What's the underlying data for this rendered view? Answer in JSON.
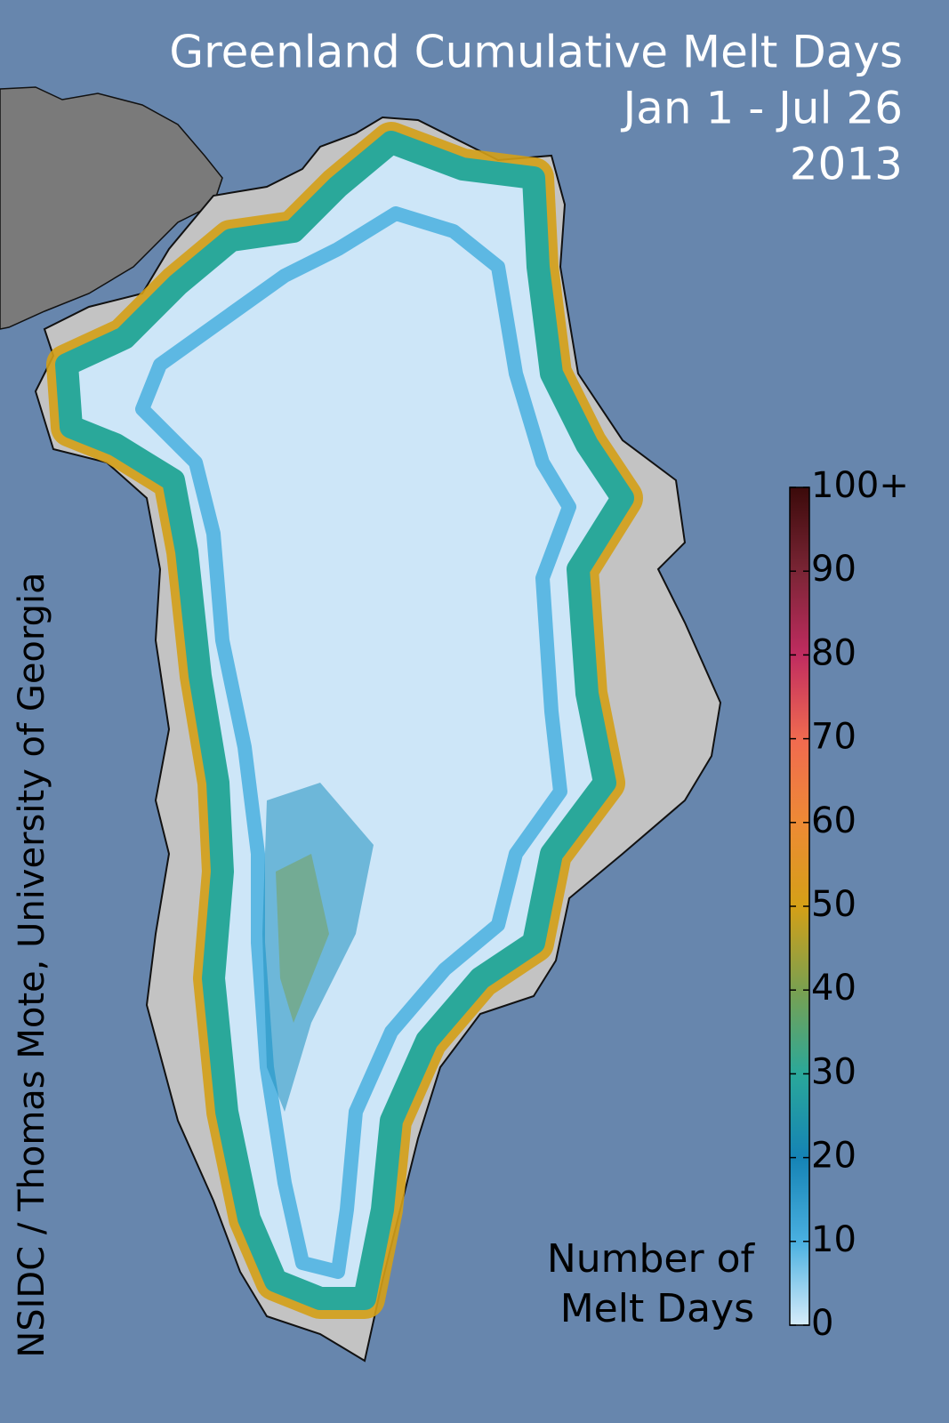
{
  "title": [
    "Greenland Cumulative Melt Days",
    "Jan 1 - Jul 26",
    "2013"
  ],
  "credit": "NSIDC / Thomas Mote, University of Georgia",
  "colorbar": {
    "label": [
      "Number of",
      "Melt Days"
    ],
    "lim": [
      0,
      100
    ],
    "ticks": [
      0,
      10,
      20,
      30,
      40,
      50,
      60,
      70,
      80,
      90,
      {
        "value": 100,
        "label": "100+"
      }
    ],
    "colors": [
      "#d6ecfa",
      "#4ab0e0",
      "#1583b5",
      "#2aa89a",
      "#7aa050",
      "#d4a017",
      "#ee8a35",
      "#f06a50",
      "#c02c60",
      "#7a2535",
      "#3b0a0a"
    ]
  }
}
